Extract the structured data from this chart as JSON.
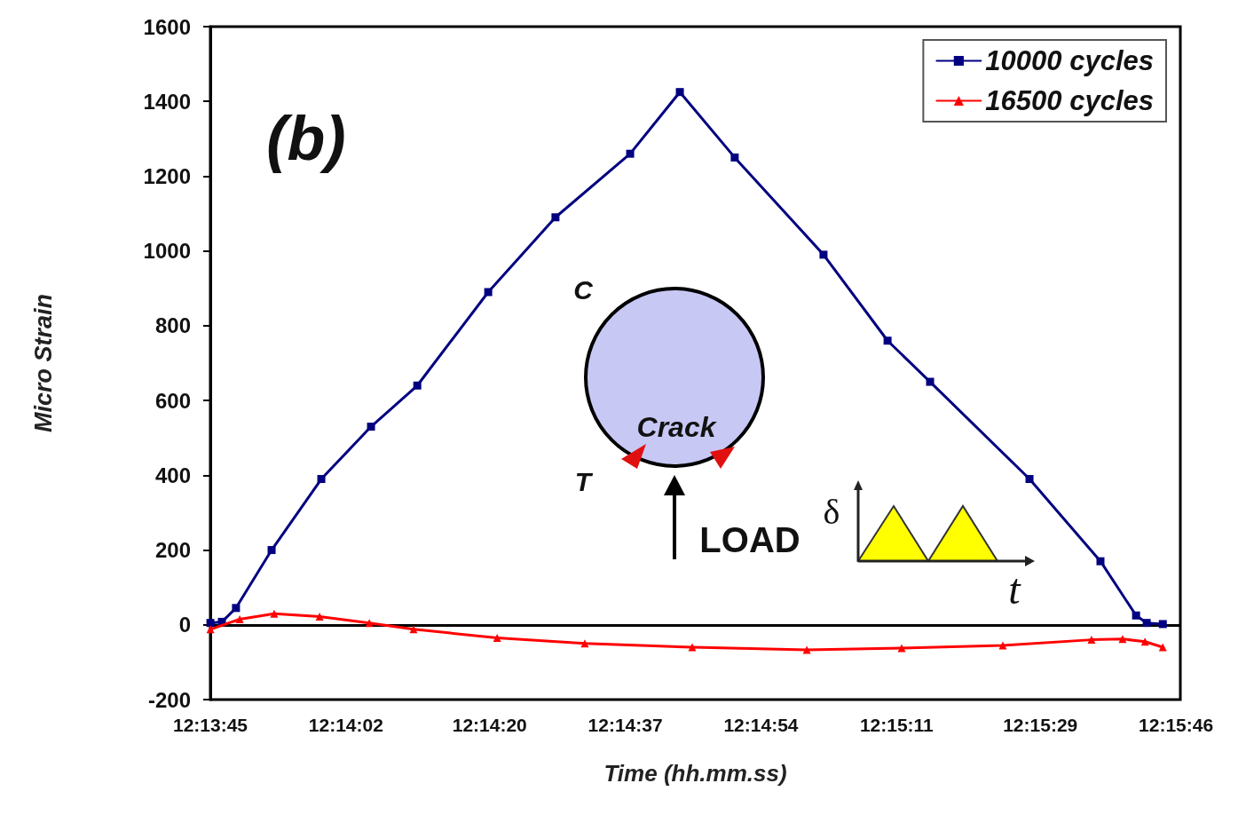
{
  "chart_data": {
    "type": "line",
    "xlabel": "Time (hh.mm.ss)",
    "ylabel": "Micro Strain",
    "annotations": [
      "(b)",
      "C",
      "T",
      "Crack",
      "LOAD",
      "δ",
      "t"
    ],
    "xlim": [
      12.229167,
      12.26293
    ],
    "xticks": [
      {
        "value": 12.229167,
        "label": "12:13:45"
      },
      {
        "value": 12.233889,
        "label": "12:14:02"
      },
      {
        "value": 12.238889,
        "label": "12:14:20"
      },
      {
        "value": 12.243611,
        "label": "12:14:37"
      },
      {
        "value": 12.248333,
        "label": "12:14:54"
      },
      {
        "value": 12.253056,
        "label": "12:15:11"
      },
      {
        "value": 12.258056,
        "label": "12:15:29"
      },
      {
        "value": 12.262778,
        "label": "12:15:46"
      }
    ],
    "ylim": [
      -200,
      1600
    ],
    "yticks": [
      -200,
      0,
      200,
      400,
      600,
      800,
      1000,
      1200,
      1400,
      1600
    ],
    "ref_lines": [
      {
        "axis": "y",
        "value": 0,
        "color": "#000000"
      }
    ],
    "legend": "top right",
    "series": [
      {
        "name": "10000 cycles",
        "color": "#000080",
        "marker": "square",
        "x": [
          12.22917,
          12.22957,
          12.23006,
          12.2313,
          12.23303,
          12.23476,
          12.23637,
          12.23884,
          12.24118,
          12.24378,
          12.24551,
          12.24742,
          12.25051,
          12.25274,
          12.25422,
          12.25768,
          12.26015,
          12.26139,
          12.26176,
          12.26232
        ],
        "values": [
          5,
          8,
          45,
          200,
          390,
          530,
          640,
          890,
          1090,
          1260,
          1425,
          1250,
          990,
          760,
          650,
          390,
          170,
          25,
          5,
          2
        ]
      },
      {
        "name": "16500 cycles",
        "color": "#ff0000",
        "marker": "triangle",
        "x": [
          12.22917,
          12.23019,
          12.23139,
          12.23297,
          12.2347,
          12.23624,
          12.23915,
          12.2422,
          12.24594,
          12.24993,
          12.25323,
          12.25675,
          12.25984,
          12.26092,
          12.2617,
          12.26232
        ],
        "values": [
          -12,
          15,
          30,
          22,
          5,
          -12,
          -35,
          -50,
          -60,
          -67,
          -62,
          -55,
          -40,
          -38,
          -45,
          -60
        ]
      }
    ]
  }
}
